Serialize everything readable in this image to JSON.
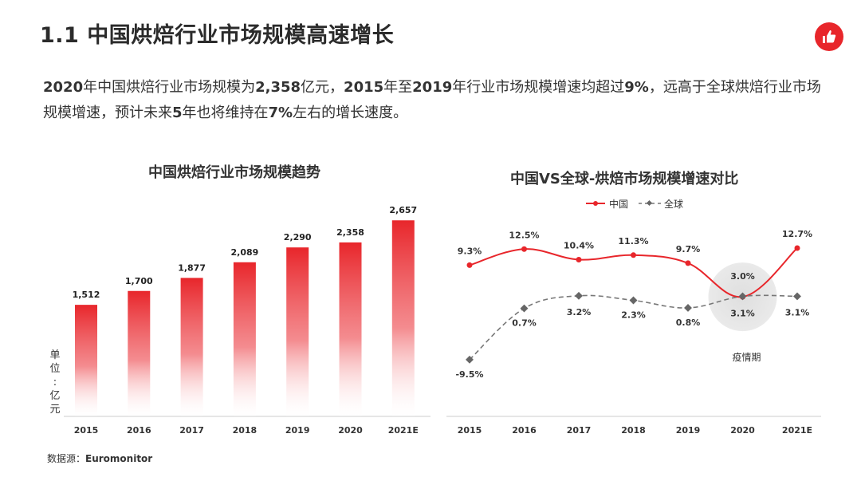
{
  "header": {
    "title": "1.1 中国烘焙行业市场规模高速增长",
    "logo_icon": "thumbs-up-icon",
    "accent_color": "#e8262b"
  },
  "lead": {
    "segments": [
      {
        "text": "2020",
        "bold": true
      },
      {
        "text": "年中国烘焙行业市场规模为",
        "bold": false
      },
      {
        "text": "2,358",
        "bold": true
      },
      {
        "text": "亿元，",
        "bold": false
      },
      {
        "text": "2015",
        "bold": true
      },
      {
        "text": "年至",
        "bold": false
      },
      {
        "text": "2019",
        "bold": true
      },
      {
        "text": "年行业市场规模增速均超过",
        "bold": false
      },
      {
        "text": "9%",
        "bold": true
      },
      {
        "text": "，远高于全球烘焙行业市场规模增速，预计未来",
        "bold": false
      },
      {
        "text": "5",
        "bold": true
      },
      {
        "text": "年也将维持在",
        "bold": false
      },
      {
        "text": "7%",
        "bold": true
      },
      {
        "text": "左右的增长速度。",
        "bold": false
      }
    ]
  },
  "unit_label": "单位：亿元",
  "source": {
    "prefix": "数据源：",
    "name": "Euromonitor"
  },
  "chart_data": [
    {
      "type": "bar",
      "title": "中国烘焙行业市场规模趋势",
      "categories": [
        "2015",
        "2016",
        "2017",
        "2018",
        "2019",
        "2020",
        "2021E"
      ],
      "values": [
        1512,
        1700,
        1877,
        2089,
        2290,
        2358,
        2657
      ],
      "value_labels": [
        "1,512",
        "1,700",
        "1,877",
        "2,089",
        "2,290",
        "2,358",
        "2,657"
      ],
      "ylabel": "单位：亿元",
      "bar_color": "#e8262b",
      "grid": false
    },
    {
      "type": "line",
      "title": "中国VS全球-烘焙市场规模增速对比",
      "categories": [
        "2015",
        "2016",
        "2017",
        "2018",
        "2019",
        "2020",
        "2021E"
      ],
      "series": [
        {
          "name": "中国",
          "values": [
            9.3,
            12.5,
            10.4,
            11.3,
            9.7,
            3.0,
            12.7
          ],
          "labels": [
            "9.3%",
            "12.5%",
            "10.4%",
            "11.3%",
            "9.7%",
            "3.0%",
            "12.7%"
          ],
          "color": "#e8262b",
          "style": "solid"
        },
        {
          "name": "全球",
          "values": [
            -9.5,
            0.7,
            3.2,
            2.3,
            0.8,
            3.1,
            3.1
          ],
          "labels": [
            "-9.5%",
            "0.7%",
            "3.2%",
            "2.3%",
            "0.8%",
            "3.1%",
            "3.1%"
          ],
          "color": "#777777",
          "style": "dashed"
        }
      ],
      "annotation": "疫情期",
      "legend_position": "top",
      "grid": false
    }
  ]
}
